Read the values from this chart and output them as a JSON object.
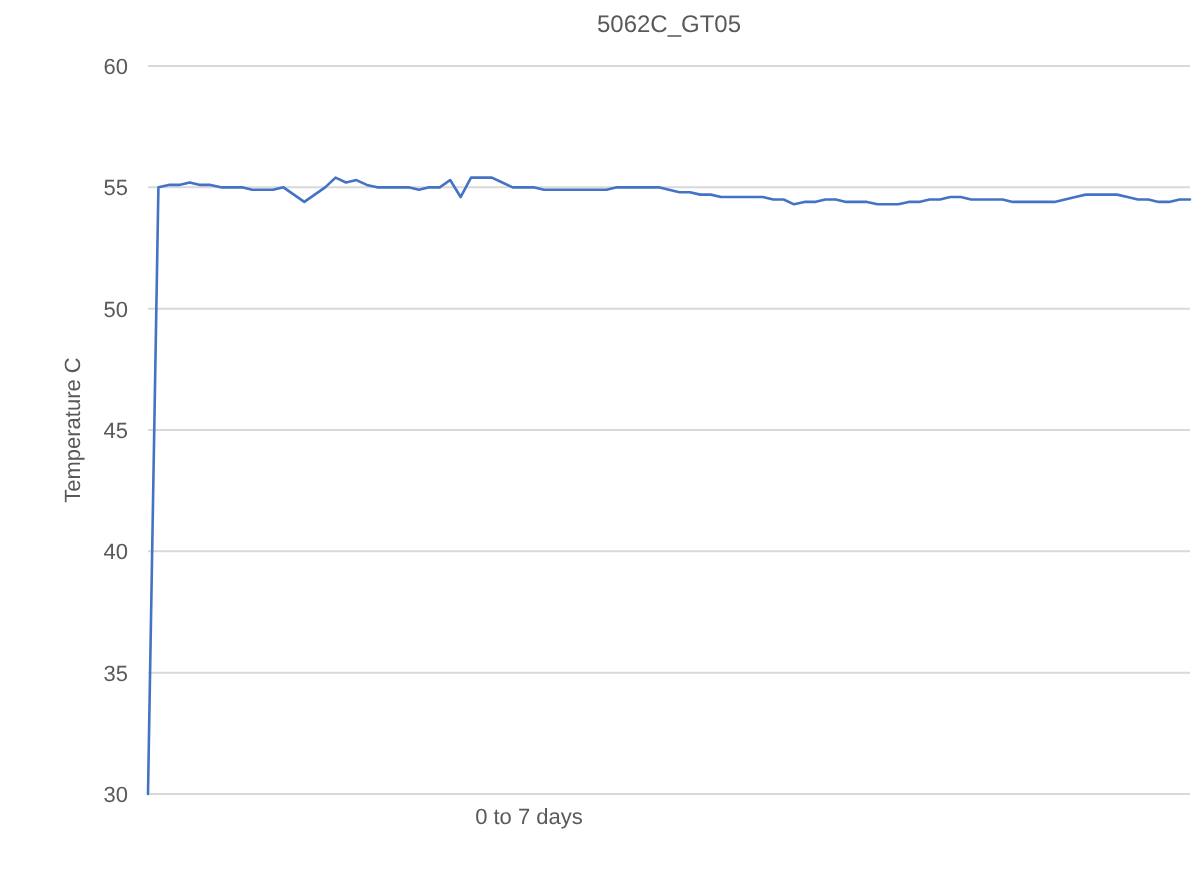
{
  "chart_data": {
    "type": "line",
    "title": "5062C_GT05",
    "xlabel": "0 to 7 days",
    "ylabel": "Temperature C",
    "categories": [
      null,
      null,
      null,
      null,
      null,
      null,
      null,
      null,
      null,
      null,
      null,
      null,
      null,
      null,
      null,
      null,
      null,
      null,
      null,
      null,
      null,
      null,
      null,
      null,
      null,
      null,
      null,
      null,
      null,
      null,
      null,
      null,
      null,
      null,
      null,
      null,
      null,
      null,
      null,
      null,
      null,
      null,
      null,
      null,
      null,
      null,
      null,
      null,
      null,
      null,
      null,
      null,
      null,
      null,
      null,
      null,
      null,
      null,
      null,
      null,
      null,
      null,
      null,
      null,
      null,
      null,
      null,
      null,
      null,
      null,
      null,
      null,
      null,
      null,
      null,
      null,
      null,
      null,
      null,
      null,
      null,
      null,
      null,
      null,
      null,
      null,
      null,
      null,
      null,
      null,
      null,
      null,
      null,
      null,
      null,
      null,
      null,
      null,
      null,
      null,
      null
    ],
    "series": [
      {
        "color": "#4472c4",
        "values": [
          30,
          55.0,
          55.1,
          55.1,
          55.2,
          55.1,
          55.1,
          55.0,
          55.0,
          55.0,
          54.9,
          54.9,
          54.9,
          55.0,
          54.7,
          54.4,
          54.7,
          55.0,
          55.4,
          55.2,
          55.3,
          55.1,
          55.0,
          55.0,
          55.0,
          55.0,
          54.9,
          55.0,
          55.0,
          55.3,
          54.6,
          55.4,
          55.4,
          55.4,
          55.2,
          55.0,
          55.0,
          55.0,
          54.9,
          54.9,
          54.9,
          54.9,
          54.9,
          54.9,
          54.9,
          55.0,
          55.0,
          55.0,
          55.0,
          55.0,
          54.9,
          54.8,
          54.8,
          54.7,
          54.7,
          54.6,
          54.6,
          54.6,
          54.6,
          54.6,
          54.5,
          54.5,
          54.3,
          54.4,
          54.4,
          54.5,
          54.5,
          54.4,
          54.4,
          54.4,
          54.3,
          54.3,
          54.3,
          54.4,
          54.4,
          54.5,
          54.5,
          54.6,
          54.6,
          54.5,
          54.5,
          54.5,
          54.5,
          54.4,
          54.4,
          54.4,
          54.4,
          54.4,
          54.5,
          54.6,
          54.7,
          54.7,
          54.7,
          54.7,
          54.6,
          54.5,
          54.5,
          54.4,
          54.4,
          54.5,
          54.5
        ]
      }
    ],
    "ylim": [
      30,
      60
    ],
    "yticks": [
      30,
      35,
      40,
      45,
      50,
      55,
      60
    ],
    "grid": "y",
    "tick_labels": "y",
    "marker": "none",
    "line_style": "solid"
  }
}
